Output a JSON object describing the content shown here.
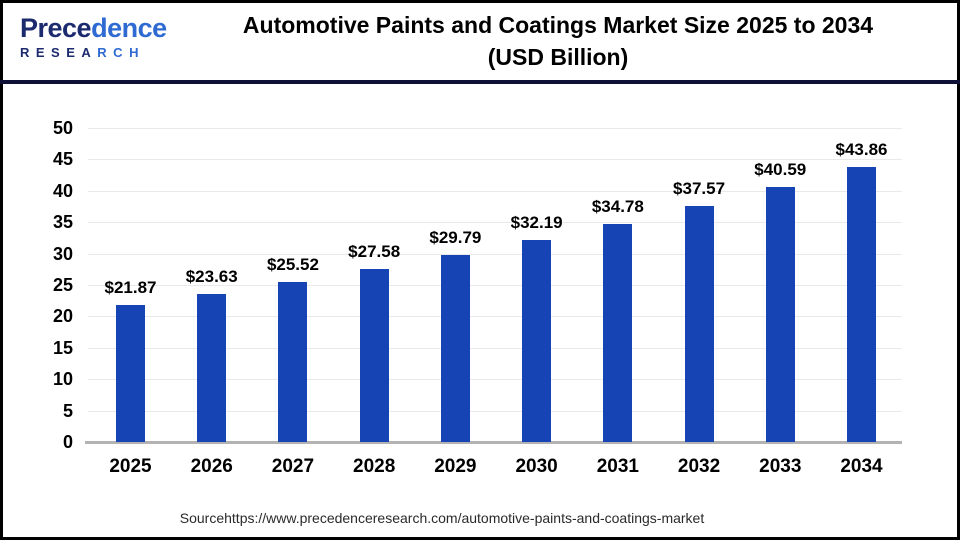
{
  "header": {
    "logo": {
      "name_dark": "Prece",
      "name_light": "dence",
      "sub_dark": "RESEA",
      "sub_light": "RCH"
    },
    "title_line1": "Automotive Paints and Coatings Market Size 2025 to 2034",
    "title_line2": "(USD Billion)"
  },
  "chart_data": {
    "type": "bar",
    "title": "Automotive Paints and Coatings Market Size 2025 to 2034 (USD Billion)",
    "categories": [
      "2025",
      "2026",
      "2027",
      "2028",
      "2029",
      "2030",
      "2031",
      "2032",
      "2033",
      "2034"
    ],
    "values": [
      21.87,
      23.63,
      25.52,
      27.58,
      29.79,
      32.19,
      34.78,
      37.57,
      40.59,
      43.86
    ],
    "data_labels": [
      "$21.87",
      "$23.63",
      "$25.52",
      "$27.58",
      "$29.79",
      "$32.19",
      "$34.78",
      "$37.57",
      "$40.59",
      "$43.86"
    ],
    "unit": "USD Billion",
    "xlabel": "",
    "ylabel": "",
    "ylim": [
      0,
      50
    ],
    "ytick_step": 5,
    "yticks": [
      0,
      5,
      10,
      15,
      20,
      25,
      30,
      35,
      40,
      45,
      50
    ],
    "grid": true,
    "legend": "none",
    "bar_color": "#1744B5"
  },
  "footer": {
    "source_text": "Sourcehttps://www.precedenceresearch.com/automotive-paints-and-coatings-market"
  },
  "colors": {
    "bar": "#1744B5",
    "header_divider": "#0E1038",
    "gridline": "#E9E9E9",
    "axis_line": "#B3B3B3",
    "logo_navy": "#1C2A6E",
    "logo_blue": "#2E6AD2",
    "title_text": "#000000",
    "source_text": "#2A2A2A",
    "background": "#FFFFFF",
    "border": "#000000"
  }
}
